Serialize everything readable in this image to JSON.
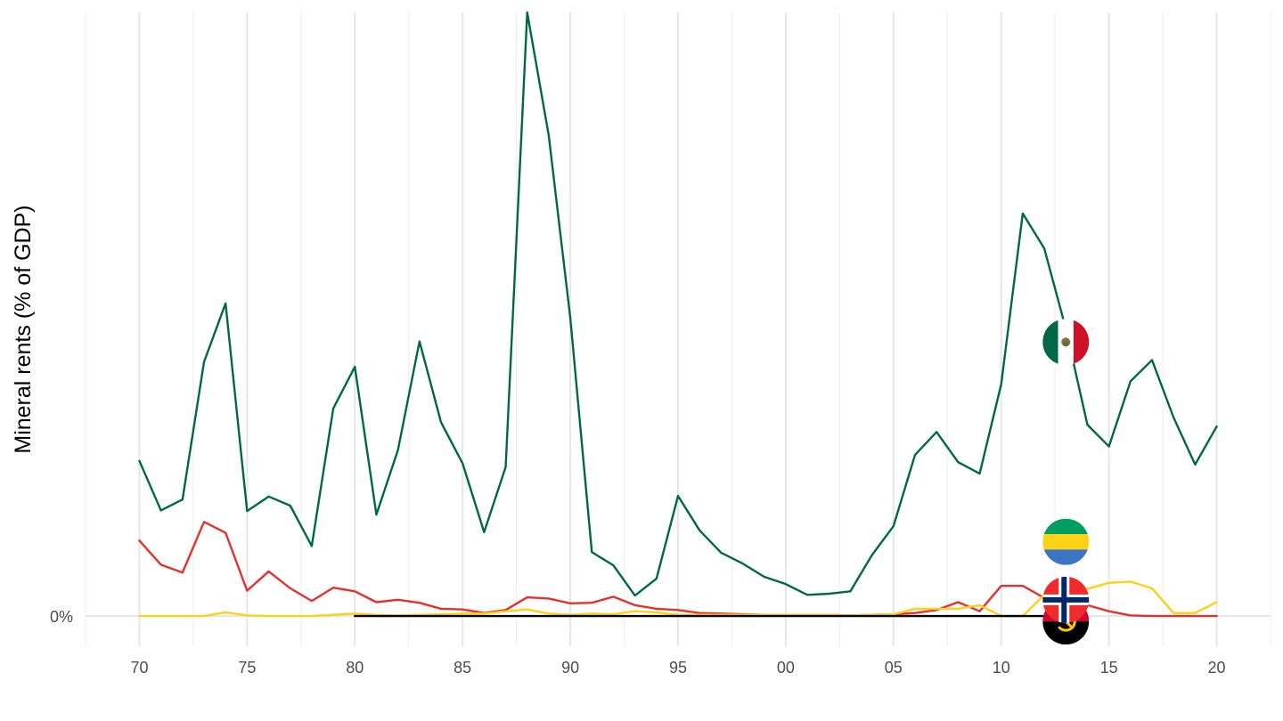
{
  "chart_data": {
    "type": "line",
    "ylabel": "Mineral rents (% of GDP)",
    "y_tick_labels": [
      {
        "value": 0,
        "label": "0%"
      }
    ],
    "x_tick_labels": [
      {
        "value": 1970,
        "label": "70"
      },
      {
        "value": 1975,
        "label": "75"
      },
      {
        "value": 1980,
        "label": "80"
      },
      {
        "value": 1985,
        "label": "85"
      },
      {
        "value": 1990,
        "label": "90"
      },
      {
        "value": 1995,
        "label": "95"
      },
      {
        "value": 2000,
        "label": "00"
      },
      {
        "value": 2005,
        "label": "05"
      },
      {
        "value": 2010,
        "label": "10"
      },
      {
        "value": 2015,
        "label": "15"
      },
      {
        "value": 2020,
        "label": "20"
      }
    ],
    "xlim": [
      1967.5,
      2022.5
    ],
    "ylim": [
      -0.05,
      1.0
    ],
    "grid": true,
    "legend": "flag markers on series",
    "series": [
      {
        "flag": "mexico",
        "color": "#006847",
        "x": [
          1970,
          1971,
          1972,
          1973,
          1974,
          1975,
          1976,
          1977,
          1978,
          1979,
          1980,
          1981,
          1982,
          1983,
          1984,
          1985,
          1986,
          1987,
          1988,
          1989,
          1990,
          1991,
          1992,
          1993,
          1994,
          1995,
          1996,
          1997,
          1998,
          1999,
          2000,
          2001,
          2002,
          2003,
          2004,
          2005,
          2006,
          2007,
          2008,
          2009,
          2010,
          2011,
          2012,
          2013,
          2014,
          2015,
          2016,
          2017,
          2018,
          2019,
          2020
        ],
        "y": [
          0.257,
          0.175,
          0.193,
          0.421,
          0.518,
          0.174,
          0.198,
          0.183,
          0.116,
          0.344,
          0.413,
          0.168,
          0.275,
          0.455,
          0.321,
          0.253,
          0.139,
          0.247,
          1.0,
          0.796,
          0.494,
          0.106,
          0.084,
          0.034,
          0.062,
          0.199,
          0.142,
          0.105,
          0.087,
          0.065,
          0.053,
          0.035,
          0.037,
          0.041,
          0.101,
          0.149,
          0.267,
          0.305,
          0.255,
          0.236,
          0.384,
          0.667,
          0.609,
          0.476,
          0.317,
          0.281,
          0.389,
          0.424,
          0.329,
          0.251,
          0.314
        ]
      },
      {
        "flag": "norway",
        "color": "#e3312d",
        "x": [
          1970,
          1971,
          1972,
          1973,
          1974,
          1975,
          1976,
          1977,
          1978,
          1979,
          1980,
          1981,
          1982,
          1983,
          1984,
          1985,
          1986,
          1987,
          1988,
          1989,
          1990,
          1991,
          1992,
          1993,
          1994,
          1995,
          1996,
          1997,
          1998,
          1999,
          2000,
          2001,
          2002,
          2003,
          2004,
          2005,
          2006,
          2007,
          2008,
          2009,
          2010,
          2011,
          2012,
          2013,
          2014,
          2015,
          2016,
          2017,
          2018,
          2019,
          2020
        ],
        "y": [
          0.125,
          0.085,
          0.072,
          0.156,
          0.138,
          0.042,
          0.074,
          0.046,
          0.025,
          0.047,
          0.041,
          0.023,
          0.027,
          0.022,
          0.012,
          0.011,
          0.005,
          0.01,
          0.031,
          0.029,
          0.021,
          0.022,
          0.032,
          0.018,
          0.012,
          0.01,
          0.005,
          0.004,
          0.003,
          0.002,
          0.002,
          0.002,
          0.002,
          0.001,
          0.002,
          0.003,
          0.005,
          0.01,
          0.023,
          0.008,
          0.05,
          0.05,
          0.03,
          0.025,
          0.018,
          0.008,
          0.001,
          0.0,
          0.0,
          0.0,
          0.0
        ]
      },
      {
        "flag": "gabon",
        "color": "#fcd116",
        "x": [
          1970,
          1971,
          1972,
          1973,
          1974,
          1975,
          1976,
          1977,
          1978,
          1979,
          1980,
          1981,
          1982,
          1983,
          1984,
          1985,
          1986,
          1987,
          1988,
          1989,
          1990,
          1991,
          1992,
          1993,
          1994,
          1995,
          1996,
          1997,
          1998,
          1999,
          2000,
          2001,
          2002,
          2003,
          2004,
          2005,
          2006,
          2007,
          2008,
          2009,
          2010,
          2011,
          2012,
          2013,
          2014,
          2015,
          2016,
          2017,
          2018,
          2019,
          2020
        ],
        "y": [
          0.0,
          0.0,
          0.0,
          0.0,
          0.006,
          0.001,
          0.0,
          0.0,
          0.0,
          0.002,
          0.004,
          0.002,
          0.001,
          0.002,
          0.003,
          0.004,
          0.004,
          0.008,
          0.011,
          0.004,
          0.002,
          0.004,
          0.003,
          0.008,
          0.006,
          0.002,
          0.002,
          0.002,
          0.002,
          0.002,
          0.002,
          0.002,
          0.002,
          0.001,
          0.002,
          0.003,
          0.012,
          0.012,
          0.012,
          0.018,
          0.0,
          0.0,
          0.035,
          0.038,
          0.045,
          0.055,
          0.057,
          0.046,
          0.005,
          0.005,
          0.023
        ]
      },
      {
        "flag": "angola",
        "color": "#000000",
        "x": [
          1980,
          1985,
          1990,
          1995,
          2000,
          2005,
          2010,
          2013
        ],
        "y": [
          0.0,
          0.0,
          0.0,
          0.0,
          0.0,
          0.0,
          0.0,
          0.0
        ]
      }
    ],
    "flag_markers": [
      {
        "flag": "mexico",
        "x": 2013,
        "y": 0.454
      },
      {
        "flag": "gabon",
        "x": 2013,
        "y": 0.064
      },
      {
        "flag": "norway",
        "x": 2013,
        "y": 0.018
      },
      {
        "flag": "angola",
        "x": 2013,
        "y": 0.0
      }
    ]
  }
}
